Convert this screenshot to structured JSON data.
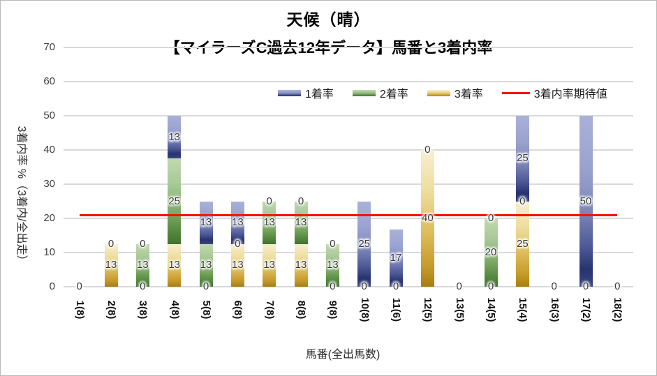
{
  "title": "天候（晴）",
  "subtitle": "【マイラーズC過去12年データ】馬番と3着内率",
  "legend": [
    {
      "label": "1着率",
      "marker": "bar",
      "series": "rate1"
    },
    {
      "label": "2着率",
      "marker": "bar",
      "series": "rate2"
    },
    {
      "label": "3着率",
      "marker": "bar",
      "series": "rate3"
    },
    {
      "label": "3着内率期待値",
      "marker": "line",
      "series": "expected"
    }
  ],
  "colors": {
    "rate1_top": "#a9b1d9",
    "rate1_bottom": "#27336e",
    "rate2_top": "#c2d8b1",
    "rate2_bottom": "#417130",
    "rate3_top": "#f7efd0",
    "rate3_bottom": "#a87d10",
    "expected_line": "#fb0f00",
    "gridline": "#d9d9d9",
    "label_text": "#3a3a3a"
  },
  "chart_data": {
    "type": "bar",
    "stacked": true,
    "title": "天候（晴）",
    "subtitle": "【マイラーズC過去12年データ】馬番と3着内率",
    "xlabel": "馬番(全出馬数)",
    "ylabel": "3着内率 %（3着内/全出走）",
    "ylim": [
      0,
      70
    ],
    "yticks": [
      0,
      10,
      20,
      30,
      40,
      50,
      60,
      70
    ],
    "grid": true,
    "legend_position": "top-right",
    "categories": [
      "1(8)",
      "2(8)",
      "3(8)",
      "4(8)",
      "5(8)",
      "6(8)",
      "7(8)",
      "8(8)",
      "9(8)",
      "10(8)",
      "11(6)",
      "12(5)",
      "13(5)",
      "14(5)",
      "15(4)",
      "16(3)",
      "17(2)",
      "18(2)"
    ],
    "stack_order_bottom_to_top": [
      "3着率",
      "2着率",
      "1着率"
    ],
    "series": [
      {
        "name": "1着率",
        "key": "rate1",
        "css": "c-blue",
        "values": [
          0,
          0,
          0,
          12.5,
          12.5,
          12.5,
          0,
          0,
          0,
          25,
          16.7,
          0,
          0,
          0,
          25,
          0,
          50,
          0
        ]
      },
      {
        "name": "2着率",
        "key": "rate2",
        "css": "c-green",
        "values": [
          0,
          0,
          12.5,
          25,
          12.5,
          0,
          12.5,
          12.5,
          12.5,
          0,
          0,
          0,
          0,
          20,
          0,
          0,
          0,
          0
        ]
      },
      {
        "name": "3着率",
        "key": "rate3",
        "css": "c-gold",
        "values": [
          0,
          12.5,
          0,
          12.5,
          0,
          12.5,
          12.5,
          12.5,
          0,
          0,
          0,
          40,
          0,
          0,
          25,
          0,
          0,
          0
        ]
      }
    ],
    "expected_line": {
      "name": "3着内率期待値",
      "value": 20.9,
      "color": "#fb0f00"
    },
    "labels_note": "t = displayed data label text, v = y-axis value where label is centered",
    "labels": [
      [
        {
          "t": "0",
          "v": 0
        }
      ],
      [
        {
          "t": "13",
          "v": 6.25
        },
        {
          "t": "0",
          "v": 12.5
        }
      ],
      [
        {
          "t": "0",
          "v": 0
        },
        {
          "t": "13",
          "v": 6.25
        },
        {
          "t": "0",
          "v": 12.5
        }
      ],
      [
        {
          "t": "13",
          "v": 6.25
        },
        {
          "t": "25",
          "v": 25
        },
        {
          "t": "13",
          "v": 43.75
        }
      ],
      [
        {
          "t": "0",
          "v": 0
        },
        {
          "t": "13",
          "v": 6.25
        },
        {
          "t": "13",
          "v": 18.75
        }
      ],
      [
        {
          "t": "13",
          "v": 6.25
        },
        {
          "t": "0",
          "v": 12.5
        },
        {
          "t": "13",
          "v": 18.75
        }
      ],
      [
        {
          "t": "13",
          "v": 6.25
        },
        {
          "t": "13",
          "v": 18.75
        },
        {
          "t": "0",
          "v": 25
        }
      ],
      [
        {
          "t": "13",
          "v": 6.25
        },
        {
          "t": "13",
          "v": 18.75
        },
        {
          "t": "0",
          "v": 25
        }
      ],
      [
        {
          "t": "0",
          "v": 0
        },
        {
          "t": "13",
          "v": 6.25
        },
        {
          "t": "0",
          "v": 12.5
        }
      ],
      [
        {
          "t": "0",
          "v": 0
        },
        {
          "t": "25",
          "v": 12.5
        }
      ],
      [
        {
          "t": "0",
          "v": 0
        },
        {
          "t": "17",
          "v": 8.3
        }
      ],
      [
        {
          "t": "40",
          "v": 20
        },
        {
          "t": "0",
          "v": 40
        }
      ],
      [
        {
          "t": "0",
          "v": 0
        }
      ],
      [
        {
          "t": "0",
          "v": 0
        },
        {
          "t": "20",
          "v": 10
        },
        {
          "t": "0",
          "v": 20
        }
      ],
      [
        {
          "t": "25",
          "v": 12.5
        },
        {
          "t": "0",
          "v": 25
        },
        {
          "t": "25",
          "v": 37.5
        }
      ],
      [
        {
          "t": "0",
          "v": 0
        }
      ],
      [
        {
          "t": "0",
          "v": 0
        },
        {
          "t": "50",
          "v": 25
        }
      ],
      [
        {
          "t": "0",
          "v": 0
        }
      ]
    ]
  }
}
